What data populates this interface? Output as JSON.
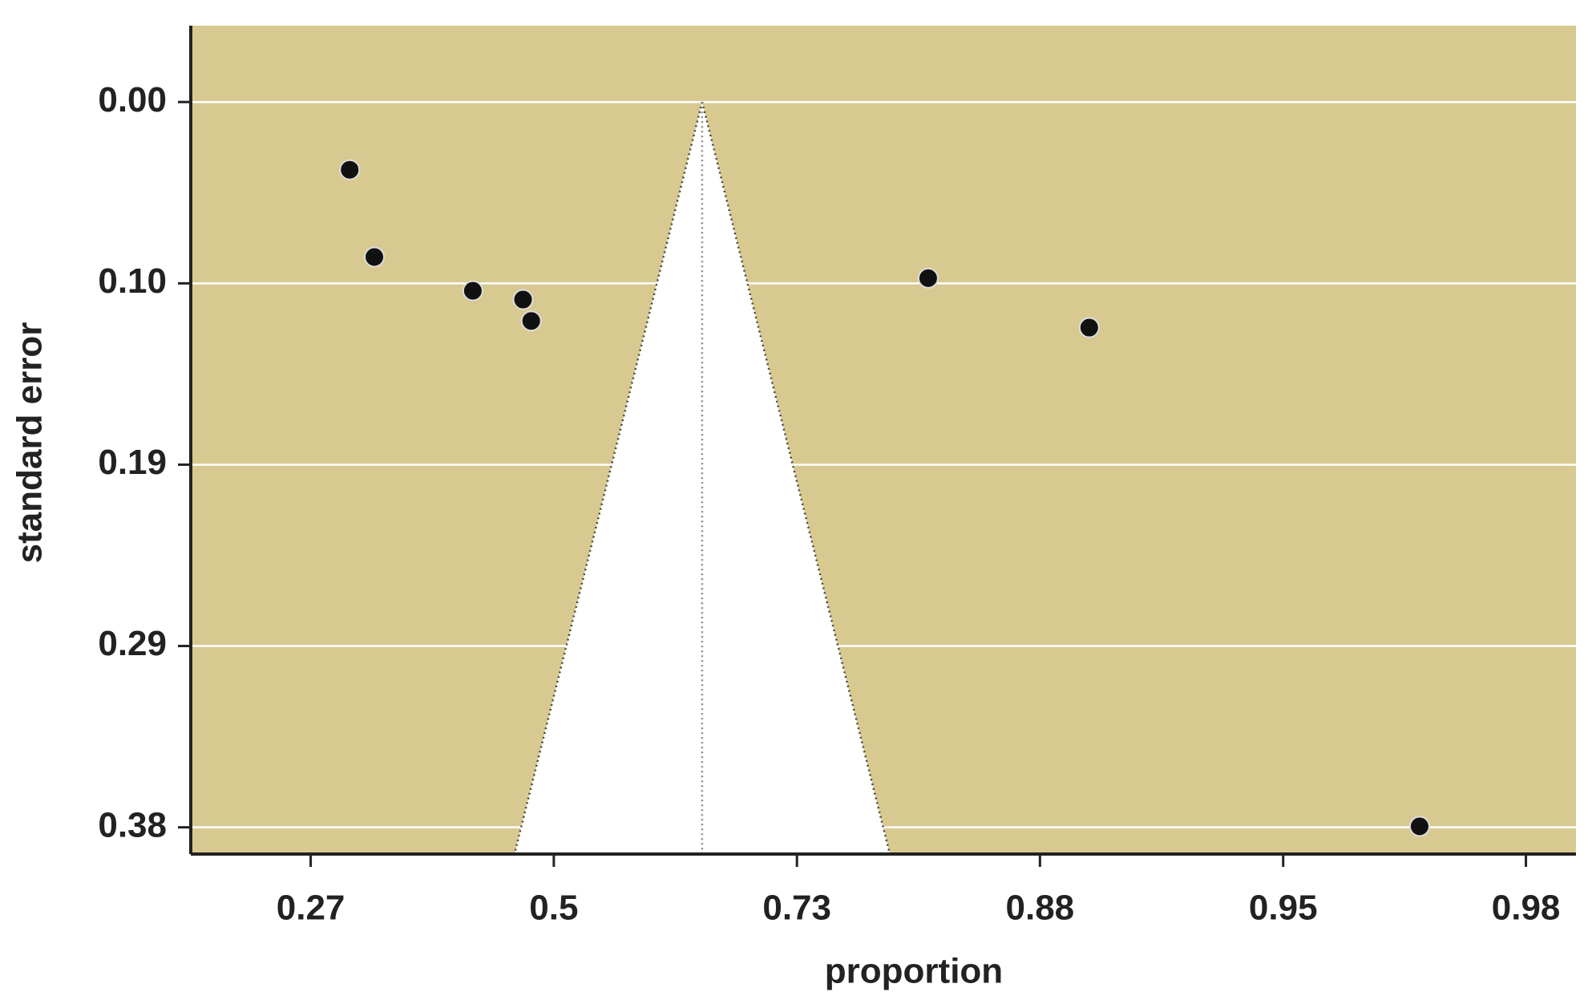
{
  "chart_data": {
    "type": "funnel",
    "x_label": "proportion",
    "y_label": "standard error",
    "x": [
      0.3016,
      0.3234,
      0.4175,
      0.4684,
      0.4768,
      0.8235,
      0.9005,
      0.9724
    ],
    "values": [
      0.0355,
      0.0812,
      0.0989,
      0.1035,
      0.1147,
      0.0923,
      0.1182,
      0.3795
    ],
    "color": "#111111",
    "pooled_estimate": 0.648,
    "funnel_z": 1.96,
    "x_scale": "logit",
    "y_inverted": true,
    "xlim": [
      0.1834,
      0.9853
    ],
    "ylim": [
      -0.04,
      0.394
    ],
    "xticks": [
      {
        "value": 0.2689,
        "label": "0.27"
      },
      0.5,
      {
        "value": 0.7311,
        "label": "0.73"
      },
      {
        "value": 0.8808,
        "label": "0.88"
      },
      {
        "value": 0.9526,
        "label": "0.95"
      },
      {
        "value": 0.982,
        "label": "0.98"
      }
    ],
    "yticks": [
      {
        "value": 0,
        "label": "0.00"
      },
      {
        "value": 0.095,
        "label": "0.10"
      },
      0.19,
      {
        "value": 0.285,
        "label": "0.29"
      },
      0.38
    ],
    "background": "#d8c990",
    "grid": true
  }
}
